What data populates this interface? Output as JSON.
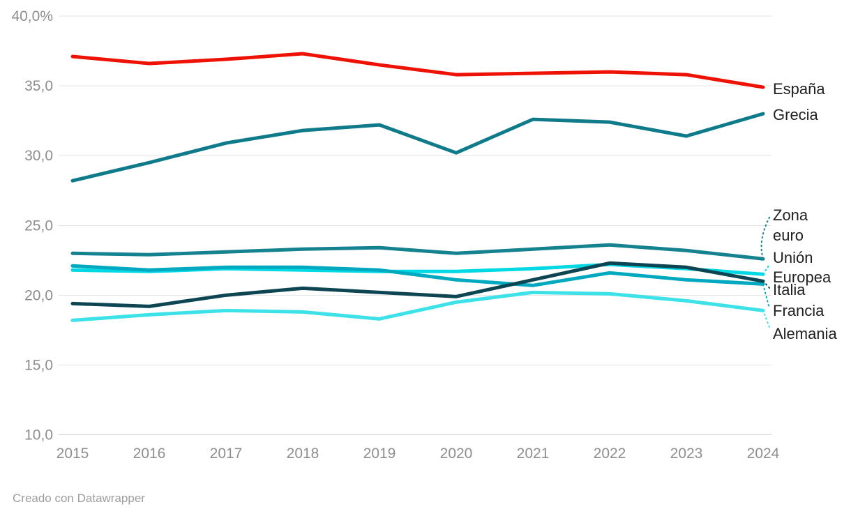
{
  "chart_data": {
    "type": "line",
    "x": [
      "2015",
      "2016",
      "2017",
      "2018",
      "2019",
      "2020",
      "2021",
      "2022",
      "2023",
      "2024"
    ],
    "series": [
      {
        "name": "España",
        "color": "#ee1205",
        "values": [
          37.1,
          36.6,
          36.9,
          37.3,
          36.5,
          35.8,
          35.9,
          36.0,
          35.8,
          34.9
        ]
      },
      {
        "name": "Grecia",
        "color": "#0f7a89",
        "values": [
          28.2,
          29.5,
          30.9,
          31.8,
          32.2,
          30.2,
          32.6,
          32.4,
          31.4,
          33.0
        ]
      },
      {
        "name": "Zona euro",
        "color": "#15828f",
        "label_lines": [
          "Zona",
          "euro"
        ],
        "values": [
          23.0,
          22.9,
          23.1,
          23.3,
          23.4,
          23.0,
          23.3,
          23.6,
          23.2,
          22.6
        ]
      },
      {
        "name": "Unión Europea",
        "color": "#00d8e4",
        "label_lines": [
          "Unión",
          "Europea"
        ],
        "values": [
          21.8,
          21.7,
          21.9,
          21.8,
          21.7,
          21.7,
          21.9,
          22.2,
          21.9,
          21.5
        ]
      },
      {
        "name": "Italia",
        "color": "#0d4553",
        "values": [
          19.4,
          19.2,
          20.0,
          20.5,
          20.2,
          19.9,
          21.1,
          22.3,
          22.0,
          21.0
        ]
      },
      {
        "name": "Francia",
        "color": "#00a9bf",
        "values": [
          22.1,
          21.8,
          22.0,
          22.0,
          21.8,
          21.1,
          20.7,
          21.6,
          21.1,
          20.8
        ]
      },
      {
        "name": "Alemania",
        "color": "#3de2e8",
        "values": [
          18.2,
          18.6,
          18.9,
          18.8,
          18.3,
          19.5,
          20.2,
          20.1,
          19.6,
          18.9
        ]
      }
    ],
    "ylim": [
      10,
      40
    ],
    "yticks": [
      {
        "value": 40,
        "label": "40,0%"
      },
      {
        "value": 35,
        "label": "35,0"
      },
      {
        "value": 30,
        "label": "30,0"
      },
      {
        "value": 25,
        "label": "25,0"
      },
      {
        "value": 20,
        "label": "20,0"
      },
      {
        "value": 15,
        "label": "15,0"
      },
      {
        "value": 10,
        "label": "10,0"
      }
    ],
    "grid": true,
    "legend_position": "right-direct-labels",
    "grid_color": "#e4e4e4",
    "baseline_color": "#cfcfcf",
    "tick_color": "#8e8e8e",
    "label_color": "#1f1f1f"
  },
  "footer": {
    "credit": "Creado con Datawrapper"
  }
}
